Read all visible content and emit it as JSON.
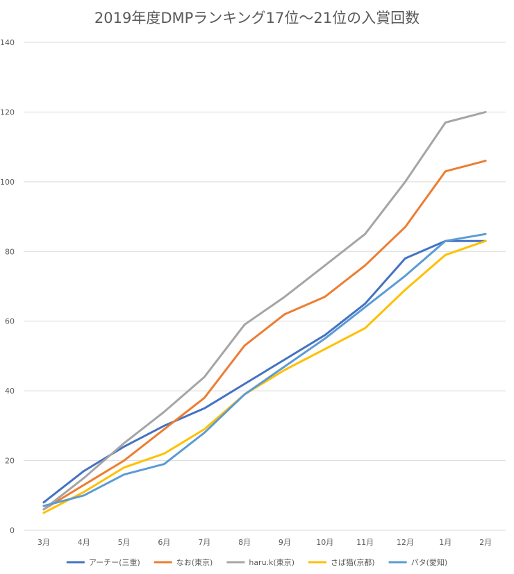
{
  "chart_data": {
    "type": "line",
    "title": "2019年度DMPランキング17位～21位の入賞回数",
    "categories": [
      "3月",
      "4月",
      "5月",
      "6月",
      "7月",
      "8月",
      "9月",
      "10月",
      "11月",
      "12月",
      "1月",
      "2月"
    ],
    "ylim": [
      0,
      140
    ],
    "yticks": [
      0,
      20,
      40,
      60,
      80,
      100,
      120,
      140
    ],
    "grid": true,
    "legend_position": "bottom",
    "series": [
      {
        "name": "アーチー(三重)",
        "color": "#4472C4",
        "values": [
          8,
          17,
          24,
          30,
          35,
          42,
          49,
          56,
          65,
          78,
          83,
          83
        ]
      },
      {
        "name": "なお(東京)",
        "color": "#ED7D31",
        "values": [
          6,
          13,
          20,
          29,
          38,
          53,
          62,
          67,
          76,
          87,
          103,
          106
        ]
      },
      {
        "name": "haru.k(東京)",
        "color": "#A5A5A5",
        "values": [
          6,
          15,
          25,
          34,
          44,
          59,
          67,
          76,
          85,
          100,
          117,
          120
        ]
      },
      {
        "name": "さば猫(京都)",
        "color": "#FFC000",
        "values": [
          5,
          11,
          18,
          22,
          29,
          39,
          46,
          52,
          58,
          69,
          79,
          83
        ]
      },
      {
        "name": "パタ(愛知)",
        "color": "#5B9BD5",
        "values": [
          7,
          10,
          16,
          19,
          28,
          39,
          47,
          55,
          64,
          73,
          83,
          85
        ]
      }
    ]
  }
}
